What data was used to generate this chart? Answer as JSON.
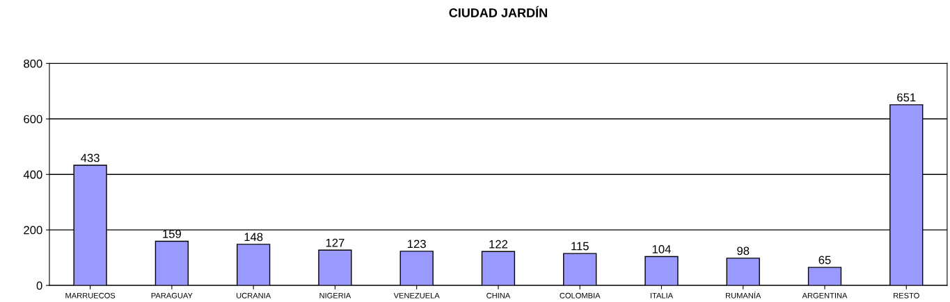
{
  "chart_data": {
    "type": "bar",
    "title": "CIUDAD JARDÍN",
    "categories": [
      "MARRUECOS",
      "PARAGUAY",
      "UCRANIA",
      "NIGERIA",
      "VENEZUELA",
      "CHINA",
      "COLOMBIA",
      "ITALIA",
      "RUMANÍA",
      "ARGENTINA",
      "RESTO"
    ],
    "values": [
      433,
      159,
      148,
      127,
      123,
      122,
      115,
      104,
      98,
      65,
      651
    ],
    "color": "#9999ff",
    "ylim": [
      0,
      800
    ],
    "yticks": [
      0,
      200,
      400,
      600,
      800
    ],
    "grid": "y",
    "data_labels": true
  }
}
